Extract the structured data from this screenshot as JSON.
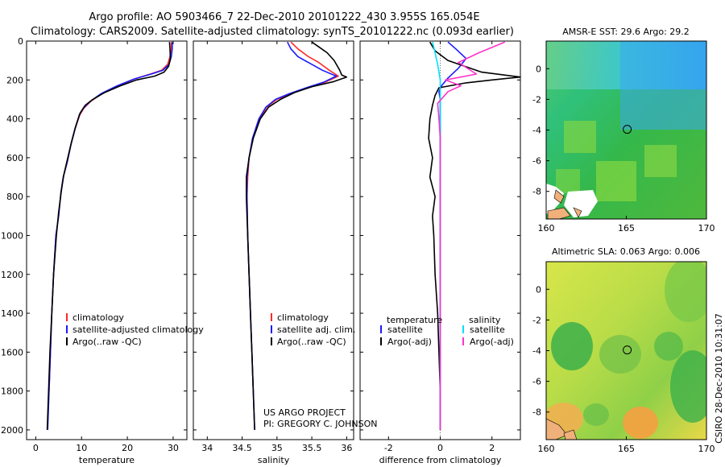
{
  "header": {
    "line1": "Argo profile: AO 5903466_7 22-Dec-2010 20101222_430 3.955S 165.054E",
    "line2": "Climatology: CARS2009. Satellite-adjusted climatology: synTS_20101222.nc (0.093d earlier)"
  },
  "credits": {
    "project": "US ARGO PROJECT",
    "pi": "PI: GREGORY C. JOHNSON",
    "stamp": "CSIRO 28-Dec-2010 10:31:07"
  },
  "colors": {
    "climatology": "#ff2a2a",
    "satellite": "#1a1aff",
    "argo": "#000000",
    "cyan": "#00e0ff",
    "magenta": "#ff33cc"
  },
  "chart_data": [
    {
      "type": "line",
      "panel": "temperature",
      "xlabel": "temperature",
      "ylabel": "",
      "xlim": [
        -2,
        33
      ],
      "ylim": [
        2050,
        0
      ],
      "xticks": [
        0,
        10,
        20,
        30
      ],
      "yticks": [
        0,
        200,
        400,
        600,
        800,
        1000,
        1200,
        1400,
        1600,
        1800,
        2000
      ],
      "legend": [
        "climatology",
        "satellite-adjusted climatology",
        "Argo(..raw -QC)"
      ],
      "series": [
        {
          "name": "climatology",
          "color": "#ff2a2a",
          "points": [
            [
              29.6,
              5
            ],
            [
              29.6,
              40
            ],
            [
              29.3,
              80
            ],
            [
              28.8,
              120
            ],
            [
              27.5,
              150
            ],
            [
              25,
              170
            ],
            [
              21.5,
              195
            ],
            [
              18,
              230
            ],
            [
              14.5,
              270
            ],
            [
              12,
              310
            ],
            [
              10.5,
              345
            ],
            [
              9.6,
              380
            ],
            [
              8.6,
              450
            ],
            [
              7.7,
              530
            ],
            [
              6.9,
              620
            ],
            [
              6.0,
              700
            ],
            [
              5.5,
              780
            ],
            [
              5.0,
              900
            ],
            [
              4.4,
              1000
            ],
            [
              3.9,
              1200
            ],
            [
              3.5,
              1400
            ],
            [
              3.2,
              1600
            ],
            [
              2.9,
              1800
            ]
          ]
        },
        {
          "name": "satellite-adjusted climatology",
          "color": "#1a1aff",
          "points": [
            [
              29.8,
              5
            ],
            [
              29.8,
              40
            ],
            [
              29.6,
              80
            ],
            [
              29.1,
              120
            ],
            [
              27.8,
              150
            ],
            [
              25.2,
              170
            ],
            [
              21.5,
              195
            ],
            [
              17.8,
              230
            ],
            [
              14.3,
              270
            ],
            [
              11.9,
              310
            ],
            [
              10.4,
              345
            ],
            [
              9.5,
              380
            ],
            [
              8.6,
              450
            ],
            [
              7.7,
              530
            ],
            [
              6.9,
              620
            ],
            [
              6.0,
              700
            ],
            [
              5.5,
              780
            ],
            [
              5.0,
              900
            ],
            [
              4.4,
              1000
            ],
            [
              3.9,
              1200
            ],
            [
              3.5,
              1400
            ],
            [
              3.2,
              1600
            ],
            [
              2.9,
              1800
            ],
            [
              2.6,
              2000
            ]
          ]
        },
        {
          "name": "Argo(..raw -QC)",
          "color": "#000000",
          "points": [
            [
              29.2,
              5
            ],
            [
              29.3,
              40
            ],
            [
              29.4,
              90
            ],
            [
              29.0,
              130
            ],
            [
              28.0,
              160
            ],
            [
              26,
              180
            ],
            [
              22,
              200
            ],
            [
              18.5,
              230
            ],
            [
              15,
              265
            ],
            [
              12.5,
              300
            ],
            [
              10.8,
              330
            ],
            [
              9.7,
              370
            ],
            [
              8.7,
              440
            ],
            [
              7.8,
              520
            ],
            [
              6.9,
              610
            ],
            [
              6.1,
              690
            ],
            [
              5.6,
              770
            ],
            [
              5.0,
              880
            ],
            [
              4.5,
              1000
            ],
            [
              3.9,
              1200
            ],
            [
              3.5,
              1400
            ],
            [
              3.1,
              1600
            ],
            [
              2.8,
              1800
            ],
            [
              2.5,
              2000
            ]
          ]
        }
      ]
    },
    {
      "type": "line",
      "panel": "salinity",
      "xlabel": "salinity",
      "ylabel": "",
      "xlim": [
        33.8,
        36.1
      ],
      "ylim": [
        2050,
        0
      ],
      "xticks": [
        34,
        34.5,
        35,
        35.5,
        36
      ],
      "xticklabels": [
        "34",
        "34.5",
        "35",
        "35.5",
        "36"
      ],
      "legend": [
        "climatology",
        "satellite adj. clim.",
        "Argo(..raw -QC)"
      ],
      "series": [
        {
          "name": "climatology",
          "color": "#ff2a2a",
          "points": [
            [
              35.2,
              5
            ],
            [
              35.3,
              40
            ],
            [
              35.45,
              80
            ],
            [
              35.6,
              110
            ],
            [
              35.75,
              150
            ],
            [
              35.88,
              180
            ],
            [
              35.7,
              210
            ],
            [
              35.45,
              240
            ],
            [
              35.2,
              270
            ],
            [
              35.0,
              300
            ],
            [
              34.85,
              340
            ],
            [
              34.75,
              400
            ],
            [
              34.65,
              500
            ],
            [
              34.6,
              600
            ],
            [
              34.58,
              700
            ],
            [
              34.57,
              800
            ],
            [
              34.58,
              1000
            ],
            [
              34.6,
              1200
            ],
            [
              34.62,
              1400
            ],
            [
              34.64,
              1600
            ],
            [
              34.66,
              1800
            ]
          ]
        },
        {
          "name": "satellite adj. clim.",
          "color": "#1a1aff",
          "points": [
            [
              35.15,
              5
            ],
            [
              35.2,
              40
            ],
            [
              35.3,
              80
            ],
            [
              35.45,
              110
            ],
            [
              35.65,
              150
            ],
            [
              35.85,
              180
            ],
            [
              35.68,
              210
            ],
            [
              35.42,
              240
            ],
            [
              35.18,
              270
            ],
            [
              34.98,
              300
            ],
            [
              34.84,
              340
            ],
            [
              34.74,
              400
            ],
            [
              34.65,
              500
            ],
            [
              34.6,
              600
            ],
            [
              34.57,
              700
            ],
            [
              34.57,
              800
            ],
            [
              34.58,
              1000
            ],
            [
              34.6,
              1200
            ],
            [
              34.62,
              1400
            ],
            [
              34.64,
              1600
            ],
            [
              34.66,
              1800
            ],
            [
              34.68,
              2000
            ]
          ]
        },
        {
          "name": "Argo(..raw -QC)",
          "color": "#000000",
          "points": [
            [
              35.5,
              5
            ],
            [
              35.6,
              30
            ],
            [
              35.72,
              60
            ],
            [
              35.82,
              100
            ],
            [
              35.9,
              150
            ],
            [
              35.93,
              175
            ],
            [
              36.0,
              185
            ],
            [
              35.8,
              210
            ],
            [
              35.5,
              235
            ],
            [
              35.25,
              265
            ],
            [
              35.05,
              300
            ],
            [
              34.88,
              340
            ],
            [
              34.76,
              400
            ],
            [
              34.66,
              500
            ],
            [
              34.6,
              600
            ],
            [
              34.56,
              700
            ],
            [
              34.56,
              800
            ],
            [
              34.58,
              1000
            ],
            [
              34.6,
              1200
            ],
            [
              34.62,
              1400
            ],
            [
              34.64,
              1600
            ],
            [
              34.66,
              1800
            ],
            [
              34.68,
              2000
            ]
          ]
        }
      ]
    },
    {
      "type": "line",
      "panel": "difference",
      "xlabel": "difference from climatology",
      "ylabel": "",
      "xlim": [
        -3.1,
        3.1
      ],
      "ylim": [
        2050,
        0
      ],
      "xticks": [
        -2,
        0,
        2
      ],
      "legend_left_title": "temperature",
      "legend_right_title": "salinity",
      "legend": [
        "satellite",
        "Argo(-adj)",
        "satellite",
        "Argo(-adj)"
      ],
      "series": [
        {
          "name": "temperature satellite",
          "color": "#1a1aff",
          "points": [
            [
              0.3,
              5
            ],
            [
              0.6,
              40
            ],
            [
              1.0,
              90
            ],
            [
              0.7,
              140
            ],
            [
              0.3,
              190
            ],
            [
              0.05,
              230
            ],
            [
              -0.05,
              260
            ],
            [
              0,
              300
            ],
            [
              0,
              2000
            ]
          ]
        },
        {
          "name": "temperature Argo(-adj)",
          "color": "#000000",
          "points": [
            [
              -0.4,
              5
            ],
            [
              -0.2,
              50
            ],
            [
              0.3,
              100
            ],
            [
              1.6,
              160
            ],
            [
              3.1,
              185
            ],
            [
              2.0,
              200
            ],
            [
              1.0,
              215
            ],
            [
              -0.05,
              240
            ],
            [
              -0.2,
              280
            ],
            [
              -0.3,
              330
            ],
            [
              -0.4,
              400
            ],
            [
              -0.45,
              500
            ],
            [
              -0.3,
              600
            ],
            [
              -0.4,
              700
            ],
            [
              -0.2,
              800
            ],
            [
              -0.3,
              900
            ],
            [
              -0.25,
              1000
            ],
            [
              -0.2,
              1200
            ],
            [
              -0.1,
              1400
            ],
            [
              -0.05,
              1600
            ],
            [
              0,
              1800
            ],
            [
              0,
              2000
            ]
          ]
        },
        {
          "name": "salinity satellite",
          "color": "#00e0ff",
          "points": [
            [
              -0.3,
              5
            ],
            [
              -0.2,
              60
            ],
            [
              -0.1,
              120
            ],
            [
              0,
              200
            ],
            [
              0,
              300
            ],
            [
              0,
              2000
            ]
          ]
        },
        {
          "name": "salinity Argo(-adj)",
          "color": "#ff33cc",
          "points": [
            [
              2.5,
              5
            ],
            [
              1.5,
              60
            ],
            [
              0.7,
              110
            ],
            [
              1.4,
              170
            ],
            [
              0.2,
              200
            ],
            [
              0.8,
              230
            ],
            [
              0.3,
              260
            ],
            [
              -0.1,
              320
            ],
            [
              -0.05,
              400
            ],
            [
              0,
              500
            ],
            [
              0,
              2000
            ]
          ]
        }
      ]
    },
    {
      "type": "heatmap",
      "panel": "sst-map",
      "title": "AMSR-E SST: 29.6 Argo: 29.2",
      "xlim": [
        160,
        170
      ],
      "ylim": [
        -9.8,
        1.8
      ],
      "xticks": [
        160,
        165,
        170
      ],
      "yticks": [
        -8,
        -6,
        -4,
        -2,
        0
      ],
      "marker": [
        165.054,
        -3.955
      ]
    },
    {
      "type": "heatmap",
      "panel": "sla-map",
      "title": "Altimetric SLA: 0.063 Argo: 0.006",
      "xlim": [
        160,
        170
      ],
      "ylim": [
        -9.8,
        1.8
      ],
      "xticks": [
        160,
        165,
        170
      ],
      "yticks": [
        -8,
        -6,
        -4,
        -2,
        0
      ],
      "marker": [
        165.054,
        -3.955
      ]
    }
  ]
}
